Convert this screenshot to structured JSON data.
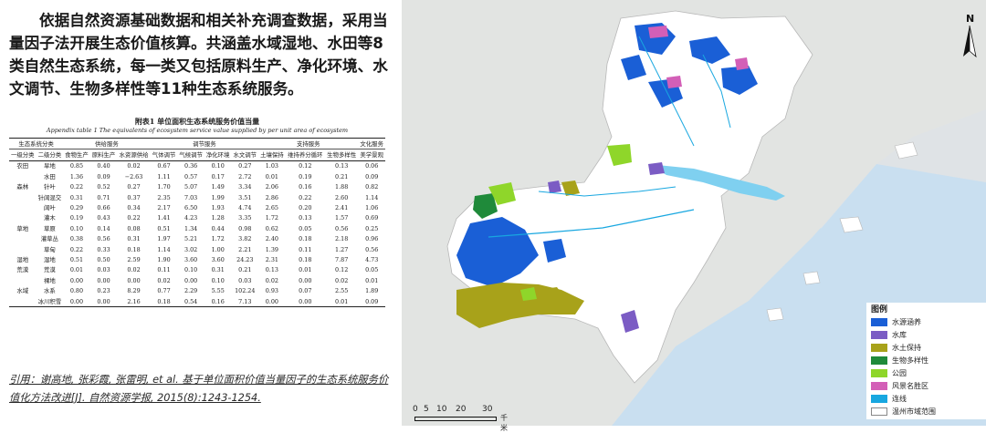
{
  "intro_text": "依据自然资源基础数据和相关补充调查数据，采用当量因子法开展生态价值核算。共涵盖水域湿地、水田等8类自然生态系统，每一类又包括原料生产、净化环境、水文调节、生物多样性等11种生态系统服务。",
  "table": {
    "title_cn": "附表1 单位面积生态系统服务价值当量",
    "title_en": "Appendix table 1 The equivalents of ecosystem service value supplied by per unit area of ecosystem",
    "header_groups": [
      "生态系统分类",
      "供给服务",
      "调节服务",
      "支持服务",
      "文化服务"
    ],
    "subheaders": [
      "一级分类",
      "二级分类",
      "食物生产",
      "原料生产",
      "水资源供给",
      "气体调节",
      "气候调节",
      "净化环境",
      "水文调节",
      "土壤保持",
      "维持养分循环",
      "生物多样性",
      "美学景观"
    ],
    "rows": [
      [
        "农田",
        "旱地",
        "0.85",
        "0.40",
        "0.02",
        "0.67",
        "0.36",
        "0.10",
        "0.27",
        "1.03",
        "0.12",
        "0.13",
        "0.06"
      ],
      [
        "",
        "水田",
        "1.36",
        "0.09",
        "−2.63",
        "1.11",
        "0.57",
        "0.17",
        "2.72",
        "0.01",
        "0.19",
        "0.21",
        "0.09"
      ],
      [
        "森林",
        "针叶",
        "0.22",
        "0.52",
        "0.27",
        "1.70",
        "5.07",
        "1.49",
        "3.34",
        "2.06",
        "0.16",
        "1.88",
        "0.82"
      ],
      [
        "",
        "针阔混交",
        "0.31",
        "0.71",
        "0.37",
        "2.35",
        "7.03",
        "1.99",
        "3.51",
        "2.86",
        "0.22",
        "2.60",
        "1.14"
      ],
      [
        "",
        "阔叶",
        "0.29",
        "0.66",
        "0.34",
        "2.17",
        "6.50",
        "1.93",
        "4.74",
        "2.65",
        "0.20",
        "2.41",
        "1.06"
      ],
      [
        "",
        "灌木",
        "0.19",
        "0.43",
        "0.22",
        "1.41",
        "4.23",
        "1.28",
        "3.35",
        "1.72",
        "0.13",
        "1.57",
        "0.69"
      ],
      [
        "草地",
        "草原",
        "0.10",
        "0.14",
        "0.08",
        "0.51",
        "1.34",
        "0.44",
        "0.98",
        "0.62",
        "0.05",
        "0.56",
        "0.25"
      ],
      [
        "",
        "灌草丛",
        "0.38",
        "0.56",
        "0.31",
        "1.97",
        "5.21",
        "1.72",
        "3.82",
        "2.40",
        "0.18",
        "2.18",
        "0.96"
      ],
      [
        "",
        "草甸",
        "0.22",
        "0.33",
        "0.18",
        "1.14",
        "3.02",
        "1.00",
        "2.21",
        "1.39",
        "0.11",
        "1.27",
        "0.56"
      ],
      [
        "湿地",
        "湿地",
        "0.51",
        "0.50",
        "2.59",
        "1.90",
        "3.60",
        "3.60",
        "24.23",
        "2.31",
        "0.18",
        "7.87",
        "4.73"
      ],
      [
        "荒漠",
        "荒漠",
        "0.01",
        "0.03",
        "0.02",
        "0.11",
        "0.10",
        "0.31",
        "0.21",
        "0.13",
        "0.01",
        "0.12",
        "0.05"
      ],
      [
        "",
        "裸地",
        "0.00",
        "0.00",
        "0.00",
        "0.02",
        "0.00",
        "0.10",
        "0.03",
        "0.02",
        "0.00",
        "0.02",
        "0.01"
      ],
      [
        "水域",
        "水系",
        "0.80",
        "0.23",
        "8.29",
        "0.77",
        "2.29",
        "5.55",
        "102.24",
        "0.93",
        "0.07",
        "2.55",
        "1.89"
      ],
      [
        "",
        "冰川积雪",
        "0.00",
        "0.00",
        "2.16",
        "0.18",
        "0.54",
        "0.16",
        "7.13",
        "0.00",
        "0.00",
        "0.01",
        "0.09"
      ]
    ]
  },
  "citation": "引用：谢高地, 张彩霞, 张雷明, et al. 基于单位面积价值当量因子的生态系统服务价值化方法改进[J]. 自然资源学报, 2015(8):1243-1254.",
  "map": {
    "north_label": "N",
    "legend_title": "图例",
    "legend": [
      {
        "label": "水源涵养",
        "color": "#1a5fd6"
      },
      {
        "label": "水库",
        "color": "#7b5cc4"
      },
      {
        "label": "水土保持",
        "color": "#a8a21a"
      },
      {
        "label": "生物多样性",
        "color": "#1f8a3a"
      },
      {
        "label": "公园",
        "color": "#8fd62a"
      },
      {
        "label": "风景名胜区",
        "color": "#d35fb7"
      },
      {
        "label": "连线",
        "color": "#18a7e0"
      },
      {
        "label": "温州市域范围",
        "color": "#ffffff"
      }
    ],
    "scale_ticks": [
      "0",
      "5",
      "10",
      "20",
      "30"
    ],
    "scale_unit": "千米"
  }
}
